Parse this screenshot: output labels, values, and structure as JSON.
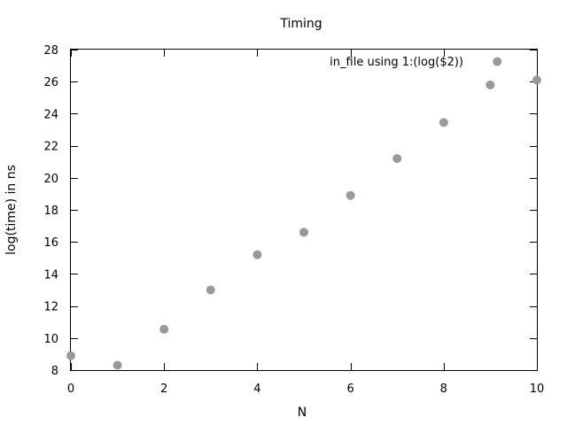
{
  "chart_data": {
    "type": "scatter",
    "title": "Timing",
    "xlabel": "N",
    "ylabel": "log(time) in ns",
    "xlim": [
      0,
      10
    ],
    "ylim": [
      8,
      28
    ],
    "xticks": [
      0,
      2,
      4,
      6,
      8,
      10
    ],
    "yticks": [
      8,
      10,
      12,
      14,
      16,
      18,
      20,
      22,
      24,
      26,
      28
    ],
    "grid": false,
    "legend_position": "top-right",
    "marker_color": "#999999",
    "series": [
      {
        "name": "in_file using 1:(log($2))",
        "points": [
          {
            "x": 0,
            "y": 8.9
          },
          {
            "x": 1,
            "y": 8.3
          },
          {
            "x": 2,
            "y": 10.55
          },
          {
            "x": 3,
            "y": 13.0
          },
          {
            "x": 4,
            "y": 15.2
          },
          {
            "x": 5,
            "y": 16.6
          },
          {
            "x": 6,
            "y": 18.9
          },
          {
            "x": 7,
            "y": 21.2
          },
          {
            "x": 8,
            "y": 23.45
          },
          {
            "x": 9,
            "y": 25.8
          },
          {
            "x": 9.15,
            "y": 27.25
          },
          {
            "x": 10,
            "y": 26.1
          }
        ]
      }
    ]
  }
}
